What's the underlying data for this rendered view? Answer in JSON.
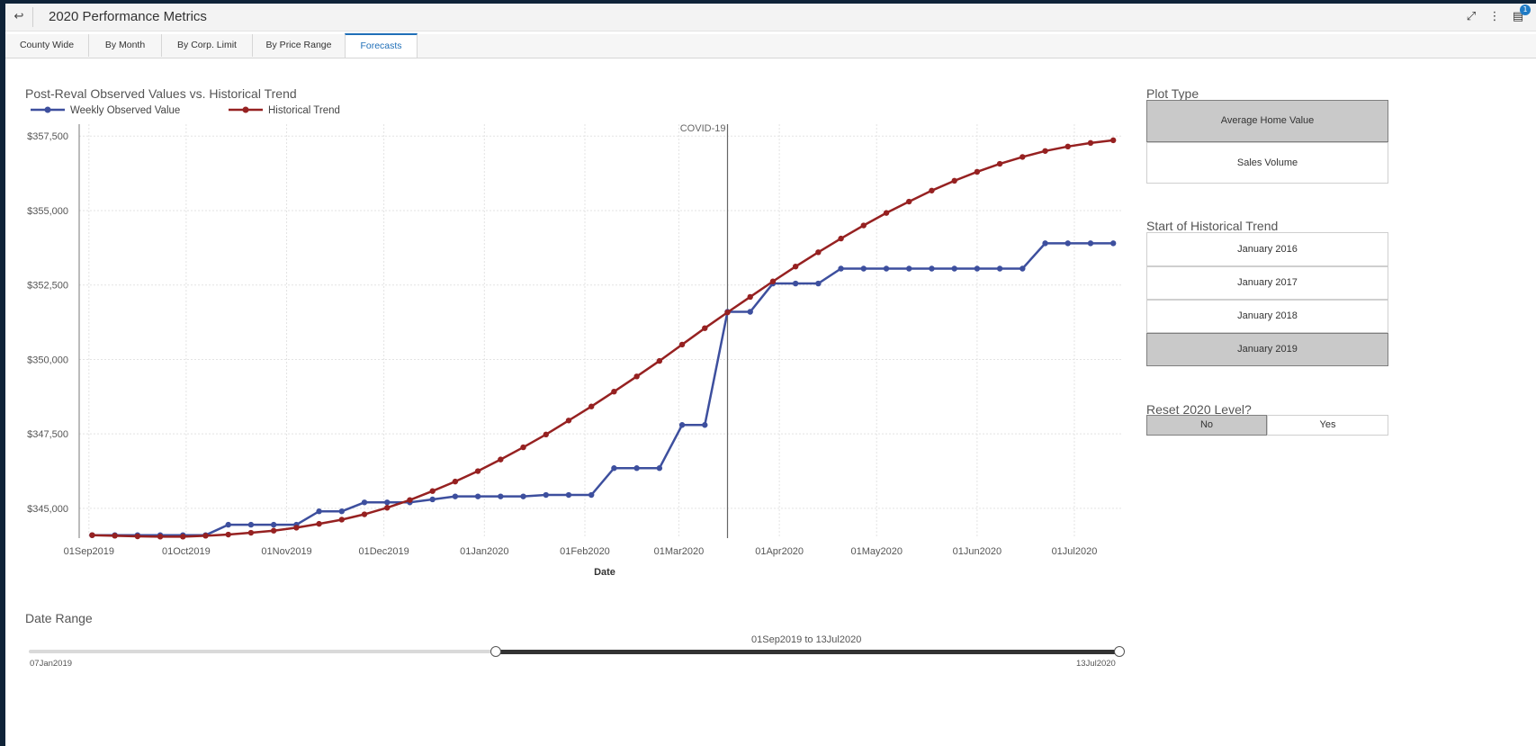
{
  "header": {
    "title": "2020 Performance Metrics",
    "back_icon": "↩",
    "expand_icon": "⤢",
    "more_icon": "⋮",
    "notes_icon": "▤",
    "notes_badge": "1"
  },
  "tabs": [
    {
      "label": "County Wide"
    },
    {
      "label": "By Month"
    },
    {
      "label": "By Corp. Limit"
    },
    {
      "label": "By Price Range"
    },
    {
      "label": "Forecasts"
    }
  ],
  "chart": {
    "title": "Post-Reval Observed Values vs. Historical Trend"
  },
  "chart_data": {
    "type": "line",
    "title": "Post-Reval Observed Values vs. Historical Trend",
    "xlabel": "Date",
    "ylabel": "",
    "x_ticks": [
      "01Sep2019",
      "01Oct2019",
      "01Nov2019",
      "01Dec2019",
      "01Jan2020",
      "01Feb2020",
      "01Mar2020",
      "01Apr2020",
      "01May2020",
      "01Jun2020",
      "01Jul2020"
    ],
    "y_ticks": [
      "$345,000",
      "$347,500",
      "$350,000",
      "$352,500",
      "$355,000",
      "$357,500"
    ],
    "y_tick_values": [
      345000,
      347500,
      350000,
      352500,
      355000,
      357500
    ],
    "ylim": [
      344000,
      357900
    ],
    "xlim": [
      "2019-08-29",
      "2020-07-16"
    ],
    "x": [
      "2019-09-02",
      "2019-09-09",
      "2019-09-16",
      "2019-09-23",
      "2019-09-30",
      "2019-10-07",
      "2019-10-14",
      "2019-10-21",
      "2019-10-28",
      "2019-11-04",
      "2019-11-11",
      "2019-11-18",
      "2019-11-25",
      "2019-12-02",
      "2019-12-09",
      "2019-12-16",
      "2019-12-23",
      "2019-12-30",
      "2020-01-06",
      "2020-01-13",
      "2020-01-20",
      "2020-01-27",
      "2020-02-03",
      "2020-02-10",
      "2020-02-17",
      "2020-02-24",
      "2020-03-02",
      "2020-03-09",
      "2020-03-16",
      "2020-03-23",
      "2020-03-30",
      "2020-04-06",
      "2020-04-13",
      "2020-04-20",
      "2020-04-27",
      "2020-05-04",
      "2020-05-11",
      "2020-05-18",
      "2020-05-25",
      "2020-06-01",
      "2020-06-08",
      "2020-06-15",
      "2020-06-22",
      "2020-06-29",
      "2020-07-06",
      "2020-07-13"
    ],
    "series": [
      {
        "name": "Weekly Observed Value",
        "color": "#3d4f9e",
        "values": [
          344100,
          344100,
          344100,
          344100,
          344100,
          344100,
          344450,
          344450,
          344450,
          344450,
          344900,
          344900,
          345200,
          345200,
          345200,
          345300,
          345400,
          345400,
          345400,
          345400,
          345450,
          345450,
          345450,
          346350,
          346350,
          346350,
          347800,
          347800,
          351600,
          351600,
          352550,
          352550,
          352550,
          353050,
          353050,
          353050,
          353050,
          353050,
          353050,
          353050,
          353050,
          353050,
          353900,
          353900,
          353900,
          353900
        ]
      },
      {
        "name": "Historical Trend",
        "color": "#962121",
        "values": [
          344100,
          344080,
          344060,
          344050,
          344050,
          344080,
          344120,
          344180,
          344250,
          344350,
          344480,
          344620,
          344800,
          345020,
          345280,
          345580,
          345900,
          346250,
          346640,
          347050,
          347480,
          347950,
          348420,
          348920,
          349430,
          349950,
          350500,
          351050,
          351580,
          352100,
          352620,
          353120,
          353600,
          354060,
          354500,
          354920,
          355300,
          355670,
          356000,
          356300,
          356570,
          356800,
          357000,
          357150,
          357270,
          357360
        ]
      }
    ],
    "annotation": {
      "label": "COVID-19",
      "x": "2020-03-16"
    },
    "grid": true,
    "legend_position": "top-left"
  },
  "controls": {
    "plot_type": {
      "title": "Plot Type",
      "options": [
        {
          "label": "Average Home Value",
          "selected": true
        },
        {
          "label": "Sales Volume",
          "selected": false
        }
      ]
    },
    "historical_start": {
      "title": "Start of Historical Trend",
      "options": [
        {
          "label": "January 2016",
          "selected": false
        },
        {
          "label": "January 2017",
          "selected": false
        },
        {
          "label": "January 2018",
          "selected": false
        },
        {
          "label": "January 2019",
          "selected": true
        }
      ]
    },
    "reset_level": {
      "title": "Reset 2020 Level?",
      "options": [
        {
          "label": "No",
          "selected": true
        },
        {
          "label": "Yes",
          "selected": false
        }
      ]
    }
  },
  "date_range": {
    "title": "Date Range",
    "min_label": "07Jan2019",
    "max_label": "13Jul2020",
    "readout": "01Sep2019 to 13Jul2020",
    "range_min": "2019-01-07",
    "range_max": "2020-07-13",
    "selected_start": "2019-09-01",
    "selected_end": "2020-07-13"
  }
}
